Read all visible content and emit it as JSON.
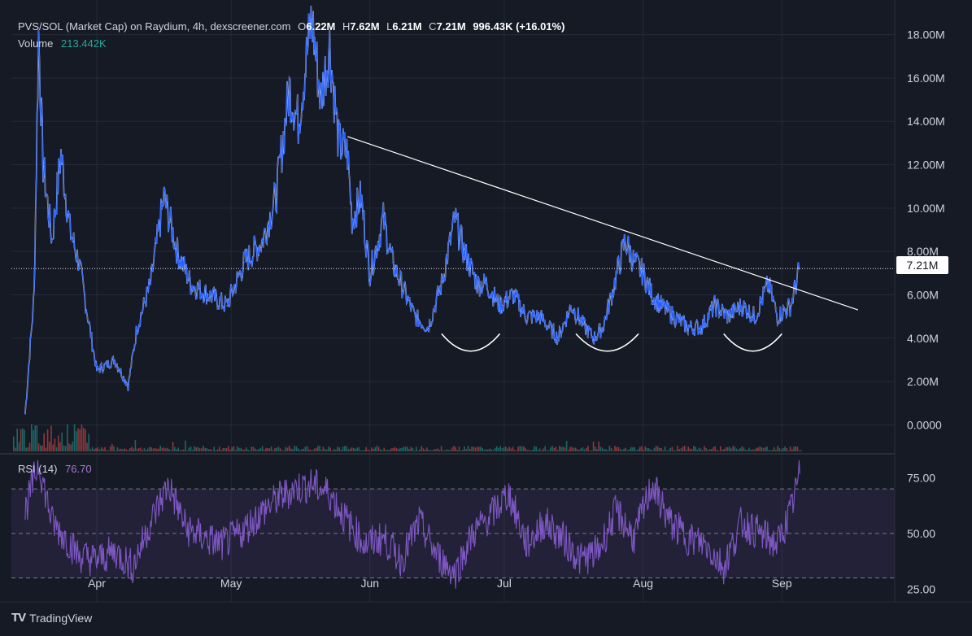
{
  "legend": {
    "title": "PVS/SOL (Market Cap) on Raydium, 4h, dexscreener.com",
    "ohlc": [
      {
        "key": "O",
        "value": "6.22M"
      },
      {
        "key": "H",
        "value": "7.62M"
      },
      {
        "key": "L",
        "value": "6.21M"
      },
      {
        "key": "C",
        "value": "7.21M"
      },
      {
        "key": "",
        "value": "996.43K (+16.01%)"
      }
    ],
    "volume_label": "Volume",
    "volume_value": "213.442K",
    "rsi_label": "RSI (14)",
    "rsi_value": "76.70"
  },
  "price_tag": "7.21M",
  "branding": "TradingView",
  "colors": {
    "background": "#161a25",
    "grid": "#242a38",
    "text": "#d1d4dc",
    "price_line": "#2962ff",
    "price_line_highlight": "#ffffff",
    "rsi_line": "#7e57c2",
    "volume_up": "#26a69a",
    "volume_down": "#ef5350",
    "trendline": "#ffffff"
  },
  "chart_data": [
    {
      "type": "line",
      "title": "PVS/SOL (Market Cap) on Raydium, 4h, dexscreener.com",
      "x_ticks": [
        "Apr",
        "May",
        "Jun",
        "Jul",
        "Aug",
        "Sep"
      ],
      "y_ticks": [
        "0.0000",
        "2.00M",
        "4.00M",
        "6.00M",
        "8.00M",
        "10.00M",
        "12.00M",
        "14.00M",
        "16.00M",
        "18.00M"
      ],
      "ylim": [
        -1.3,
        19.3
      ],
      "y_unit": "M",
      "grid": true,
      "series": [
        {
          "x": [
            "Mar 16",
            "Mar 18",
            "Mar 19",
            "Mar 20",
            "Mar 22",
            "Mar 24",
            "Mar 26",
            "Mar 28",
            "Apr 1",
            "Apr 5",
            "Apr 8",
            "Apr 10",
            "Apr 13",
            "Apr 16",
            "Apr 19",
            "Apr 22",
            "Apr 26",
            "Apr 30",
            "May 4",
            "May 8",
            "May 11",
            "May 14",
            "May 16",
            "May 19",
            "May 21",
            "May 23",
            "May 25",
            "May 27",
            "May 28",
            "May 30",
            "Jun 1",
            "Jun 4",
            "Jun 6",
            "Jun 9",
            "Jun 11",
            "Jun 14",
            "Jun 17",
            "Jun 20",
            "Jun 22",
            "Jun 25",
            "Jun 27",
            "Jun 30",
            "Jul 3",
            "Jul 6",
            "Jul 9",
            "Jul 13",
            "Jul 16",
            "Jul 19",
            "Jul 21",
            "Jul 23",
            "Jul 25",
            "Jul 28",
            "Jul 30",
            "Aug 1",
            "Aug 3",
            "Aug 5",
            "Aug 8",
            "Aug 11",
            "Aug 14",
            "Aug 17",
            "Aug 20",
            "Aug 23",
            "Aug 26",
            "Aug 29",
            "Aug 31",
            "Sep 3",
            "Sep 5"
          ],
          "values": [
            0.5,
            6.0,
            18.0,
            12.0,
            8.5,
            12.5,
            9.0,
            7.5,
            2.5,
            3.0,
            1.8,
            4.5,
            6.5,
            10.5,
            8.0,
            6.5,
            6.0,
            5.5,
            7.5,
            8.5,
            10.5,
            15.5,
            14.0,
            18.8,
            15.0,
            17.5,
            13.0,
            12.5,
            9.5,
            10.5,
            7.0,
            9.5,
            7.5,
            6.0,
            5.0,
            4.5,
            6.5,
            9.5,
            8.0,
            6.5,
            6.5,
            5.5,
            6.0,
            5.0,
            5.0,
            4.0,
            5.5,
            4.5,
            4.0,
            4.5,
            6.0,
            8.5,
            7.5,
            7.0,
            6.0,
            5.5,
            5.0,
            4.5,
            4.5,
            5.5,
            5.0,
            5.5,
            5.0,
            6.5,
            5.0,
            5.5,
            7.2
          ]
        }
      ],
      "trendline": {
        "from": [
          "May 27",
          13.3
        ],
        "to": [
          "Sep 18",
          5.3
        ]
      },
      "last_value": 7.21
    },
    {
      "type": "line",
      "title": "RSI (14)",
      "x_ticks": [
        "Apr",
        "May",
        "Jun",
        "Jul",
        "Aug",
        "Sep"
      ],
      "y_ticks": [
        "25.00",
        "50.00",
        "75.00"
      ],
      "ylim": [
        20,
        85
      ],
      "band": [
        30,
        70
      ],
      "midline": 50,
      "series": [
        {
          "name": "RSI (14)",
          "x": [
            "Mar 16",
            "Mar 19",
            "Mar 22",
            "Mar 25",
            "Mar 28",
            "Apr 1",
            "Apr 5",
            "Apr 9",
            "Apr 13",
            "Apr 17",
            "Apr 21",
            "Apr 25",
            "Apr 29",
            "May 3",
            "May 7",
            "May 11",
            "May 15",
            "May 19",
            "May 23",
            "May 27",
            "May 31",
            "Jun 4",
            "Jun 8",
            "Jun 12",
            "Jun 16",
            "Jun 20",
            "Jun 24",
            "Jun 28",
            "Jul 2",
            "Jul 6",
            "Jul 10",
            "Jul 14",
            "Jul 18",
            "Jul 22",
            "Jul 26",
            "Jul 30",
            "Aug 3",
            "Aug 7",
            "Aug 11",
            "Aug 15",
            "Aug 19",
            "Aug 23",
            "Aug 27",
            "Aug 31",
            "Sep 3",
            "Sep 5"
          ],
          "values": [
            60,
            82,
            55,
            48,
            40,
            38,
            42,
            35,
            55,
            72,
            52,
            48,
            45,
            50,
            58,
            65,
            70,
            72,
            68,
            55,
            45,
            48,
            38,
            55,
            40,
            32,
            50,
            58,
            68,
            45,
            55,
            48,
            38,
            42,
            60,
            48,
            72,
            55,
            48,
            45,
            35,
            55,
            50,
            45,
            60,
            76.7
          ]
        }
      ],
      "last_value": 76.7
    },
    {
      "type": "bar",
      "title": "Volume",
      "last_value": "213.442K"
    }
  ]
}
